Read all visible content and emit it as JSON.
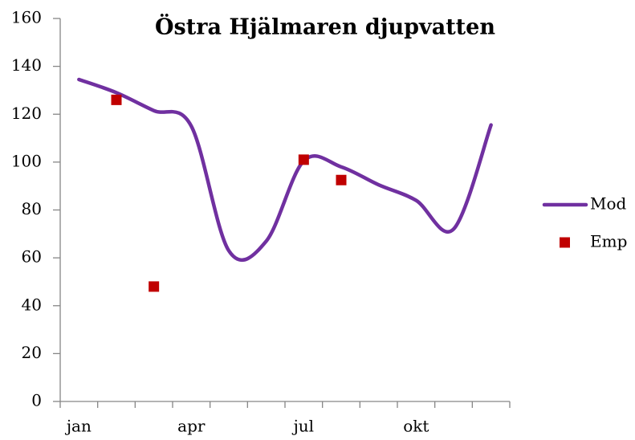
{
  "chart_data": {
    "type": "line",
    "title": "Östra Hjälmaren djupvatten",
    "categories": [
      "jan",
      null,
      null,
      "apr",
      null,
      null,
      "jul",
      null,
      null,
      "okt",
      null,
      null
    ],
    "series": [
      {
        "name": "Mod",
        "color": "#7030a0",
        "style": "smooth-line",
        "values": [
          134.5,
          129,
          121.5,
          115,
          63,
          67,
          100.5,
          98,
          90.5,
          84,
          72,
          115.5
        ]
      },
      {
        "name": "Emp",
        "color": "#c00000",
        "style": "markers",
        "values": [
          null,
          126,
          48,
          null,
          null,
          null,
          101,
          92.5,
          null,
          null,
          null,
          null
        ]
      }
    ],
    "ylim": [
      0,
      160
    ],
    "yticks": [
      0,
      20,
      40,
      60,
      80,
      100,
      120,
      140,
      160
    ],
    "grid": false,
    "legend": "right"
  }
}
